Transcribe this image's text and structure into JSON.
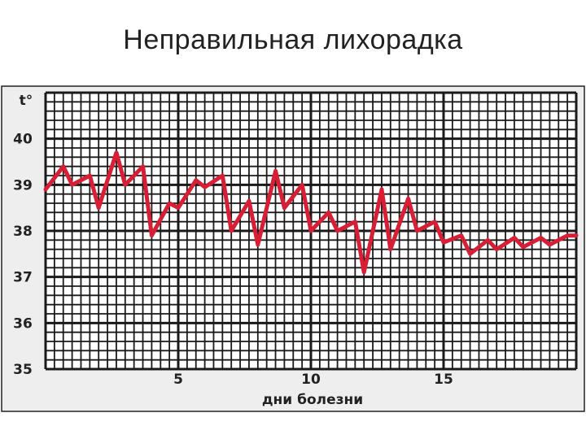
{
  "title": "Неправильная лихорадка",
  "chart_data": {
    "type": "line",
    "title": "Неправильная лихорадка",
    "xlabel": "дни болезни",
    "ylabel": "t°",
    "xlim": [
      0,
      20
    ],
    "ylim": [
      35,
      41
    ],
    "x_ticks": [
      5,
      10,
      15
    ],
    "y_ticks": [
      35,
      36,
      37,
      38,
      39,
      40
    ],
    "grid": true,
    "colors": {
      "line": "#d81e35",
      "grid": "#1a1a1a",
      "background": "#eeeeee"
    },
    "series": [
      {
        "x": [
          0,
          0.67,
          1,
          1.67,
          2,
          2.67,
          3,
          3.67,
          4,
          4.67,
          5,
          5.67,
          6,
          6.67,
          7,
          7.67,
          8,
          8.67,
          9,
          9.67,
          10,
          10.67,
          11,
          11.67,
          12,
          12.67,
          13,
          13.67,
          14,
          14.67,
          15,
          15.67,
          16,
          16.67,
          17,
          17.67,
          18,
          18.67,
          19,
          19.67,
          20
        ],
        "y": [
          38.9,
          39.4,
          39.0,
          39.2,
          38.5,
          39.7,
          39.0,
          39.4,
          37.9,
          38.6,
          38.5,
          39.1,
          38.95,
          39.2,
          38.0,
          38.65,
          37.7,
          39.3,
          38.5,
          39.0,
          38.0,
          38.4,
          38.0,
          38.2,
          37.1,
          38.9,
          37.6,
          38.7,
          38.0,
          38.2,
          37.75,
          37.9,
          37.5,
          37.8,
          37.6,
          37.85,
          37.65,
          37.85,
          37.7,
          37.9,
          37.9
        ]
      }
    ]
  }
}
